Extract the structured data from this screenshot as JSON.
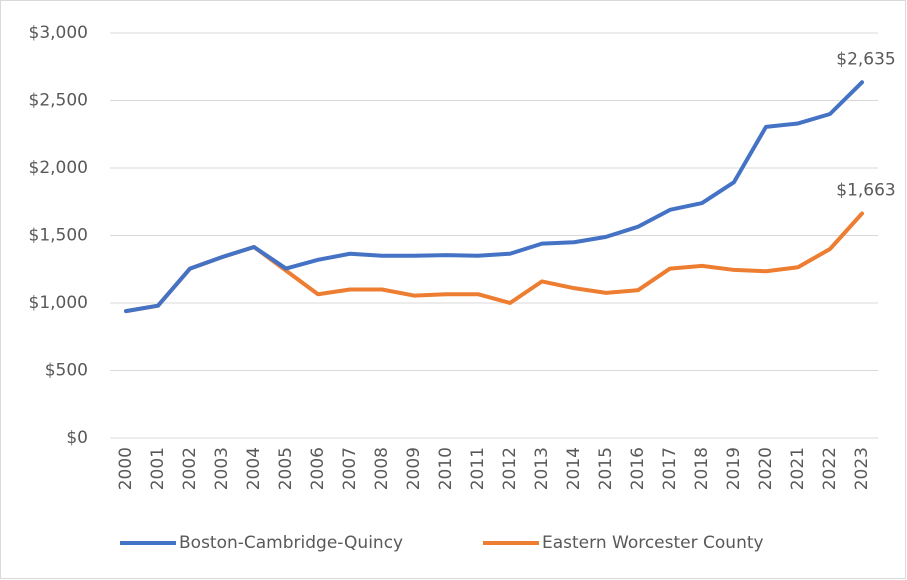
{
  "chart_data": {
    "type": "line",
    "categories": [
      "2000",
      "2001",
      "2002",
      "2003",
      "2004",
      "2005",
      "2006",
      "2007",
      "2008",
      "2009",
      "2010",
      "2011",
      "2012",
      "2013",
      "2014",
      "2015",
      "2016",
      "2017",
      "2018",
      "2019",
      "2020",
      "2021",
      "2022",
      "2023"
    ],
    "series": [
      {
        "name": "Boston-Cambridge-Quincy",
        "color": "#4472c4",
        "values": [
          940,
          980,
          1255,
          1340,
          1415,
          1255,
          1320,
          1365,
          1350,
          1350,
          1355,
          1350,
          1365,
          1440,
          1450,
          1490,
          1565,
          1690,
          1740,
          1895,
          2305,
          2330,
          2400,
          2635
        ],
        "value_labels": [
          null,
          null,
          null,
          null,
          null,
          null,
          null,
          null,
          null,
          null,
          null,
          null,
          null,
          null,
          null,
          null,
          null,
          null,
          null,
          null,
          null,
          null,
          null,
          "$2,635"
        ]
      },
      {
        "name": "Eastern Worcester County",
        "color": "#ed7d31",
        "values": [
          940,
          980,
          1255,
          1340,
          1415,
          1240,
          1065,
          1100,
          1100,
          1055,
          1065,
          1065,
          1000,
          1160,
          1110,
          1075,
          1095,
          1255,
          1275,
          1245,
          1235,
          1265,
          1400,
          1663
        ],
        "value_labels": [
          null,
          null,
          null,
          null,
          null,
          null,
          null,
          null,
          null,
          null,
          null,
          null,
          null,
          null,
          null,
          null,
          null,
          null,
          null,
          null,
          null,
          null,
          null,
          "$1,663"
        ]
      }
    ],
    "ylim": [
      0,
      3000
    ],
    "yticks": [
      {
        "value": 0,
        "label": "$0"
      },
      {
        "value": 500,
        "label": "$500"
      },
      {
        "value": 1000,
        "label": "$1,000"
      },
      {
        "value": 1500,
        "label": "$1,500"
      },
      {
        "value": 2000,
        "label": "$2,000"
      },
      {
        "value": 2500,
        "label": "$2,500"
      },
      {
        "value": 3000,
        "label": "$3,000"
      }
    ],
    "grid": true,
    "legend": "bottom"
  }
}
